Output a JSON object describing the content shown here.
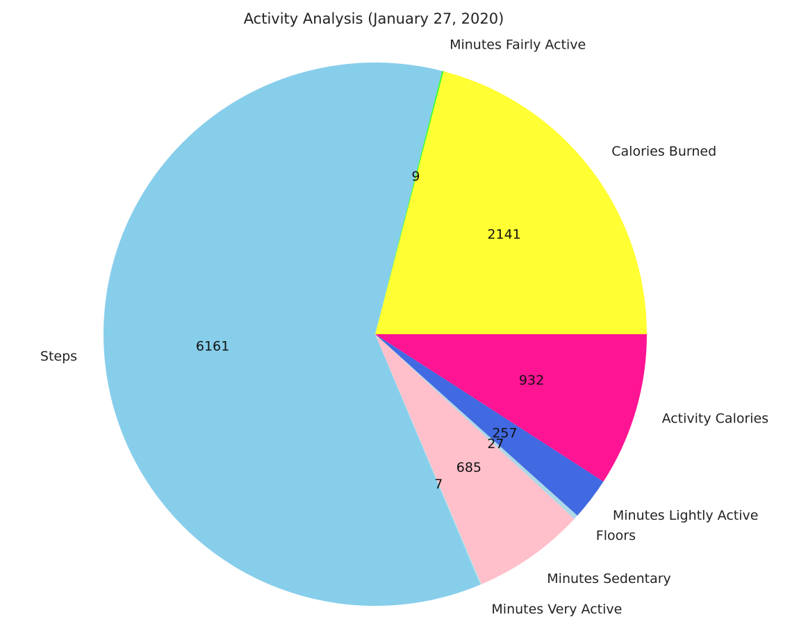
{
  "chart_data": {
    "type": "pie",
    "title": "Activity Analysis (January 27, 2020)",
    "start_angle_deg": 0,
    "direction": "counterclockwise",
    "slices": [
      {
        "label": "Calories Burned",
        "value": 2141,
        "color": "#ffff33"
      },
      {
        "label": "Minutes Fairly Active",
        "value": 9,
        "color": "#33ff33"
      },
      {
        "label": "Steps",
        "value": 6161,
        "color": "#87ceeb"
      },
      {
        "label": "Minutes Very Active",
        "value": 7,
        "color": "#b0e0e6"
      },
      {
        "label": "Minutes Sedentary",
        "value": 685,
        "color": "#ffc0cb"
      },
      {
        "label": "Floors",
        "value": 27,
        "color": "#add8e6"
      },
      {
        "label": "Minutes Lightly Active",
        "value": 257,
        "color": "#4169e1"
      },
      {
        "label": "Activity Calories",
        "value": 932,
        "color": "#ff1493"
      }
    ]
  }
}
